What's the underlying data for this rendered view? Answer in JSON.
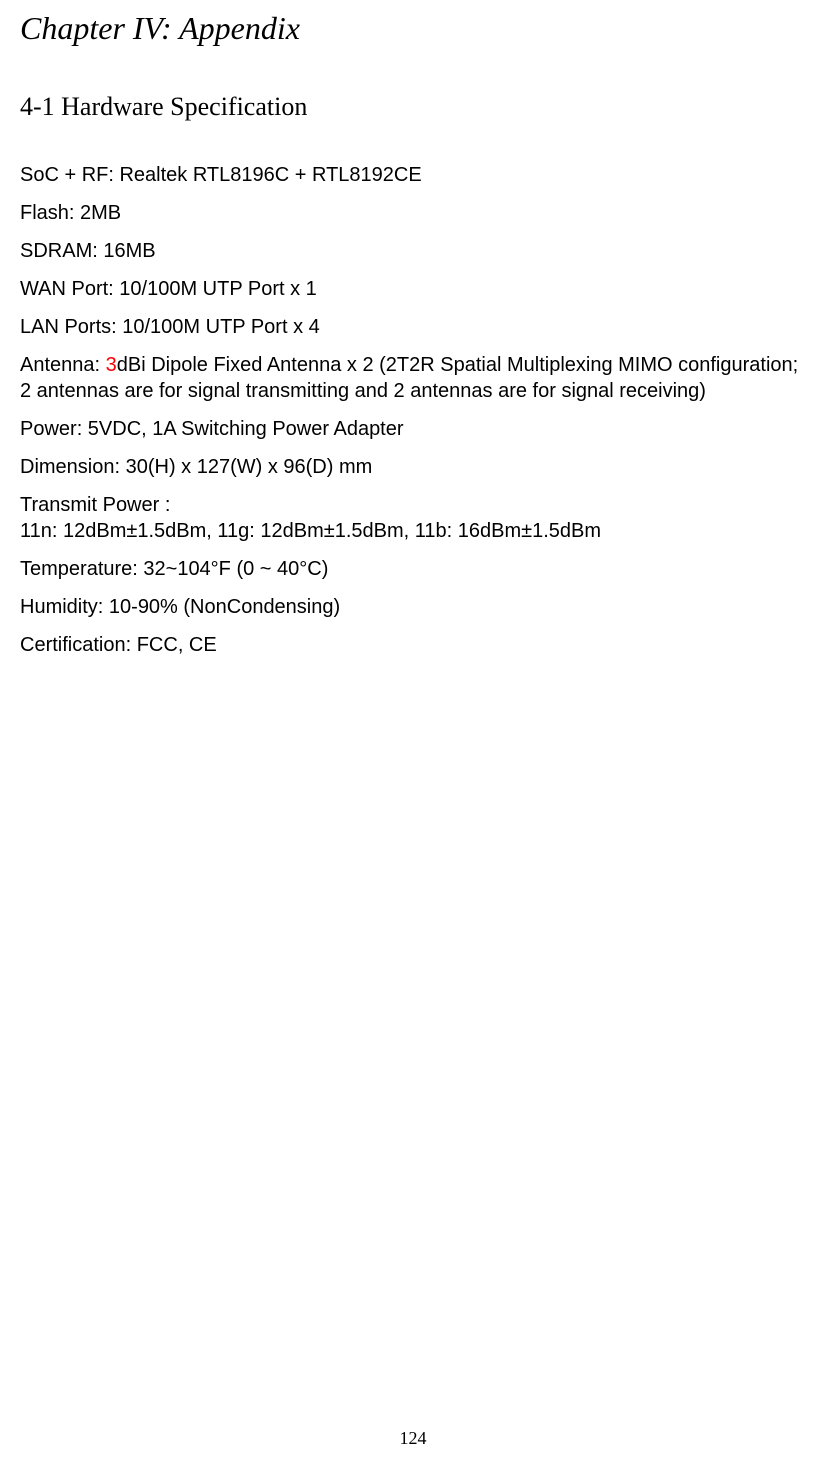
{
  "chapter_title": "Chapter IV: Appendix",
  "section_title": "4-1 Hardware Specification",
  "specs": {
    "soc_rf": "SoC + RF: Realtek RTL8196C + RTL8192CE",
    "flash": "Flash: 2MB",
    "sdram": "SDRAM: 16MB",
    "wan_port": "WAN Port: 10/100M UTP Port x 1",
    "lan_ports": "LAN Ports: 10/100M UTP Port x 4",
    "antenna_prefix": "Antenna: ",
    "antenna_highlight": "3",
    "antenna_suffix": "dBi Dipole Fixed Antenna x 2 (2T2R Spatial Multiplexing MIMO configuration; 2 antennas are for signal transmitting and 2 antennas are for signal receiving)",
    "power": "Power: 5VDC, 1A Switching Power Adapter",
    "dimension": "Dimension: 30(H) x 127(W) x 96(D) mm",
    "transmit_power_label": "Transmit Power :",
    "transmit_power_values": "11n: 12dBm±1.5dBm, 11g: 12dBm±1.5dBm, 11b: 16dBm±1.5dBm",
    "temperature": "Temperature: 32~104°F (0 ~ 40°C)",
    "humidity": "Humidity: 10-90% (NonCondensing)",
    "certification": "Certification: FCC, CE"
  },
  "page_number": "124",
  "styling": {
    "background_color": "#ffffff",
    "text_color": "#000000",
    "highlight_color": "#ff0000",
    "chapter_font": "Times New Roman",
    "chapter_fontsize": 32,
    "section_fontsize": 26,
    "body_font": "Arial",
    "body_fontsize": 20,
    "page_number_fontsize": 18
  }
}
